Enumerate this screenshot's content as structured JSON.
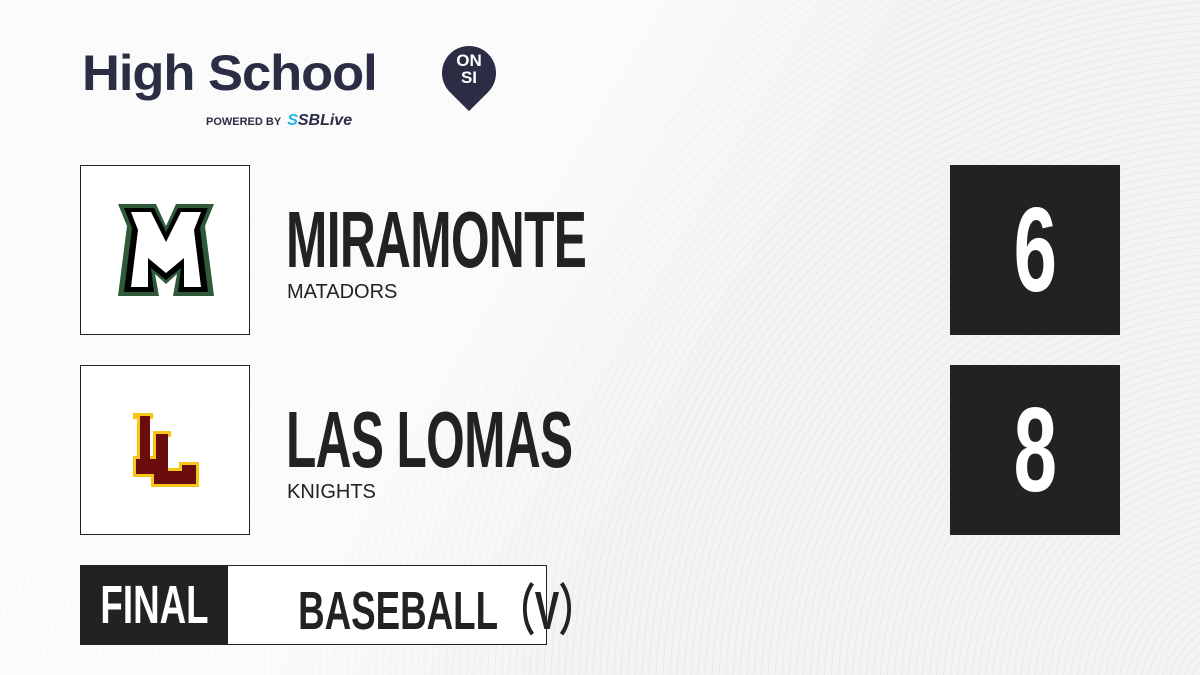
{
  "brand": {
    "title": "High School",
    "badge_top": "ON",
    "badge_bottom": "SI",
    "powered_by": "POWERED BY",
    "partner_prefix": "S",
    "partner": "SBLive"
  },
  "teams": [
    {
      "name": "MIRAMONTE",
      "mascot": "MATADORS",
      "score": "6",
      "logo_letter": "M",
      "colors": {
        "primary": "#2e5a3a",
        "secondary": "#000000"
      }
    },
    {
      "name": "LAS LOMAS",
      "mascot": "KNIGHTS",
      "score": "8",
      "logo_letter": "LL",
      "colors": {
        "primary": "#6b0c0c",
        "secondary": "#f5c518"
      }
    }
  ],
  "status": "FINAL",
  "sport": "BASEBALL（V）"
}
